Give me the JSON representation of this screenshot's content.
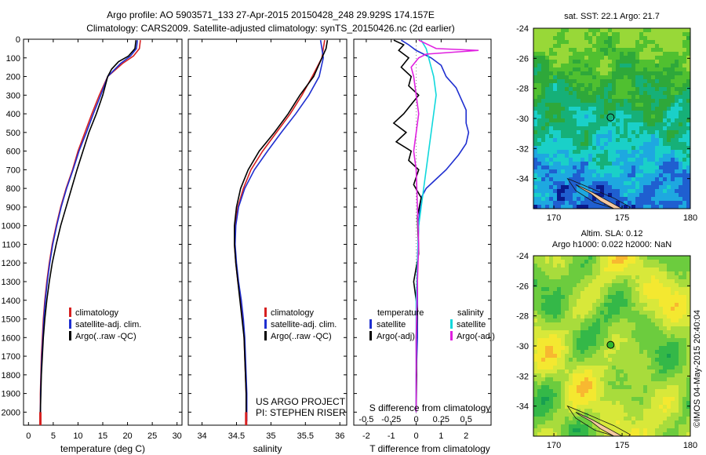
{
  "header": {
    "line1": "Argo profile: AO 5903571_133 27-Apr-2015 20150428_248 29.929S 174.157E",
    "line2": "Climatology: CARS2009. Satellite-adjusted climatology: synTS_20150426.nc (2d earlier)"
  },
  "chart_data": [
    {
      "id": "temperature",
      "type": "line",
      "xlabel": "temperature (deg C)",
      "xlim": [
        -1,
        31
      ],
      "xticks": [
        0,
        5,
        10,
        15,
        20,
        25,
        30
      ],
      "ylim": [
        2070,
        0
      ],
      "yticks": [
        0,
        100,
        200,
        300,
        400,
        500,
        600,
        700,
        800,
        900,
        1000,
        1100,
        1200,
        1300,
        1400,
        1500,
        1600,
        1700,
        1800,
        1900,
        2000
      ],
      "legend": [
        "climatology",
        "satellite-adj. clim.",
        "Argo(..raw -QC)"
      ],
      "series": [
        {
          "name": "climatology",
          "color": "#d62020",
          "x": [
            22.6,
            22.4,
            21.2,
            19.0,
            16.0,
            14.3,
            12.8,
            11.4,
            10.0,
            8.9,
            7.6,
            6.5,
            5.6,
            4.8,
            4.2,
            3.7,
            3.3,
            3.0,
            2.8,
            2.6,
            2.5,
            2.4,
            2.4
          ],
          "y": [
            5,
            50,
            90,
            130,
            200,
            300,
            400,
            500,
            600,
            700,
            800,
            900,
            1000,
            1100,
            1200,
            1300,
            1400,
            1500,
            1600,
            1700,
            1800,
            1900,
            2050
          ]
        },
        {
          "name": "satellite-adj. clim.",
          "color": "#1f2fd0",
          "x": [
            22.0,
            21.8,
            20.6,
            18.6,
            16.0,
            14.6,
            13.1,
            11.7,
            10.2,
            9.0,
            7.7,
            6.6,
            5.7,
            4.9,
            4.3,
            3.8,
            3.4,
            3.1,
            2.9,
            2.7,
            2.55,
            2.45,
            2.4
          ],
          "y": [
            5,
            50,
            90,
            130,
            200,
            300,
            400,
            500,
            600,
            700,
            800,
            900,
            1000,
            1100,
            1200,
            1300,
            1400,
            1500,
            1600,
            1700,
            1800,
            1900,
            2050
          ]
        },
        {
          "name": "Argo(..raw -QC)",
          "color": "#000000",
          "x": [
            21.7,
            21.5,
            20.2,
            18.2,
            16.8,
            16.0,
            15.0,
            13.7,
            12.2,
            11.0,
            9.8,
            8.7,
            7.6,
            6.5,
            5.6,
            4.8,
            4.2,
            3.7,
            3.3,
            3.0,
            2.8,
            2.6,
            2.5,
            2.4,
            2.4
          ],
          "y": [
            5,
            50,
            90,
            120,
            160,
            200,
            300,
            400,
            500,
            600,
            700,
            800,
            900,
            1000,
            1100,
            1200,
            1300,
            1400,
            1500,
            1600,
            1700,
            1800,
            1900,
            2000,
            2050
          ]
        }
      ]
    },
    {
      "id": "salinity",
      "type": "line",
      "xlabel": "salinity",
      "xlim": [
        33.8,
        36.1
      ],
      "xticks": [
        34,
        34.5,
        35,
        35.5,
        36
      ],
      "ylim": [
        2070,
        0
      ],
      "legend": [
        "climatology",
        "satellite-adj. clim.",
        "Argo(..raw -QC)"
      ],
      "annotation": [
        "US ARGO PROJECT",
        "PI: STEPHEN RISER"
      ],
      "series": [
        {
          "name": "climatology",
          "color": "#d62020",
          "x": [
            35.78,
            35.76,
            35.74,
            35.6,
            35.45,
            35.28,
            35.08,
            34.88,
            34.71,
            34.6,
            34.52,
            34.48,
            34.47,
            34.49,
            34.52,
            34.56,
            34.59,
            34.61,
            34.62,
            34.63,
            34.64,
            34.64
          ],
          "y": [
            5,
            50,
            100,
            200,
            300,
            400,
            500,
            600,
            700,
            800,
            900,
            1000,
            1100,
            1200,
            1300,
            1400,
            1500,
            1600,
            1700,
            1800,
            1900,
            2050
          ]
        },
        {
          "name": "satellite-adj. clim.",
          "color": "#1f2fd0",
          "x": [
            35.72,
            35.74,
            35.76,
            35.7,
            35.55,
            35.36,
            35.15,
            34.95,
            34.76,
            34.62,
            34.53,
            34.49,
            34.48,
            34.5,
            34.53,
            34.57,
            34.6,
            34.62,
            34.63,
            34.64,
            34.65,
            34.65
          ],
          "y": [
            5,
            50,
            100,
            200,
            300,
            400,
            500,
            600,
            700,
            800,
            900,
            1000,
            1100,
            1200,
            1300,
            1400,
            1500,
            1600,
            1700,
            1800,
            1900,
            2050
          ]
        },
        {
          "name": "Argo(..raw -QC)",
          "color": "#000000",
          "x": [
            35.82,
            35.8,
            35.74,
            35.62,
            35.42,
            35.25,
            35.05,
            34.83,
            34.67,
            34.56,
            34.5,
            34.47,
            34.47,
            34.49,
            34.52,
            34.55,
            34.58,
            34.61,
            34.62,
            34.63,
            34.64,
            34.64
          ],
          "y": [
            5,
            50,
            100,
            200,
            300,
            400,
            500,
            600,
            700,
            800,
            900,
            1000,
            1100,
            1200,
            1300,
            1400,
            1500,
            1600,
            1700,
            1800,
            1900,
            2000
          ]
        }
      ]
    },
    {
      "id": "difference",
      "type": "line",
      "xlabel": "T difference from climatology",
      "xlabel_top": "S difference from climatology",
      "xlim": [
        -2.5,
        3.0
      ],
      "xticks": [
        -2,
        -1,
        0,
        1,
        2
      ],
      "xticks_top": [
        {
          "v": -0.5,
          "label": "-0.5"
        },
        {
          "v": -0.25,
          "label": "-0.25"
        },
        {
          "v": 0,
          "label": "0"
        },
        {
          "v": 0.25,
          "label": "0.25"
        },
        {
          "v": 0.5,
          "label": "0.5"
        }
      ],
      "ylim": [
        2070,
        0
      ],
      "legend_titles": [
        "temperature",
        "salinity"
      ],
      "legend": [
        "satellite",
        "Argo(-adj)",
        "satellite",
        "Argo(-adj)"
      ],
      "series": [
        {
          "name": "satellite",
          "quantity": "temperature",
          "color": "#1f2fd0",
          "x": [
            -0.6,
            -0.3,
            0.0,
            0.6,
            1.0,
            1.2,
            1.6,
            1.8,
            2.0,
            2.0,
            2.1,
            2.0,
            1.7,
            1.2,
            0.8,
            0.4,
            0.2,
            0.15,
            0.1,
            0.05,
            0.05,
            0.05,
            0.0,
            0.0
          ],
          "y": [
            5,
            30,
            60,
            100,
            140,
            200,
            260,
            320,
            380,
            450,
            500,
            560,
            620,
            700,
            750,
            800,
            850,
            900,
            1000,
            1200,
            1400,
            1600,
            1800,
            2000
          ]
        },
        {
          "name": "Argo(-adj)",
          "quantity": "temperature",
          "color": "#000000",
          "x": [
            -0.9,
            -0.5,
            -0.7,
            -0.3,
            -0.6,
            -0.2,
            -0.3,
            0.1,
            -0.2,
            -0.5,
            -0.9,
            -0.4,
            -0.8,
            -0.2,
            -0.3,
            0.1,
            -0.1,
            0.2,
            0.05,
            0.1,
            -0.1,
            0.05,
            0.0,
            0.02,
            0.0
          ],
          "y": [
            5,
            30,
            60,
            100,
            150,
            200,
            250,
            300,
            350,
            400,
            450,
            500,
            550,
            600,
            650,
            700,
            780,
            850,
            950,
            1150,
            1300,
            1450,
            1600,
            1800,
            2000
          ]
        },
        {
          "name": "satellite",
          "quantity": "salinity",
          "color": "#10d8dc",
          "x": [
            0.2,
            0.4,
            0.5,
            0.6,
            0.7,
            0.8,
            0.7,
            0.6,
            0.5,
            0.4,
            0.3,
            0.2,
            0.1,
            0.05,
            0.0,
            0.0,
            0.0
          ],
          "y": [
            5,
            50,
            100,
            150,
            200,
            300,
            400,
            500,
            600,
            700,
            800,
            900,
            1000,
            1200,
            1400,
            1600,
            2000
          ]
        },
        {
          "name": "Argo(-adj)",
          "quantity": "salinity",
          "color": "#e020e0",
          "x": [
            0.1,
            0.8,
            2.5,
            0.4,
            0.1,
            -0.2,
            -0.1,
            0.0,
            0.1,
            0.0,
            -0.1,
            0.0,
            0.05,
            0.1,
            0.05,
            0.0,
            0.0
          ],
          "y": [
            5,
            50,
            60,
            80,
            100,
            150,
            200,
            300,
            400,
            500,
            600,
            700,
            900,
            1100,
            1300,
            1600,
            2000
          ]
        }
      ]
    }
  ],
  "maps": [
    {
      "id": "sst",
      "title": "sat. SST: 22.1  Argo: 21.7",
      "xticks": [
        170,
        175,
        180
      ],
      "yticks": [
        -24,
        -26,
        -28,
        -30,
        -32,
        -34
      ],
      "lon_range": [
        168.5,
        180
      ],
      "lat_range": [
        -36,
        -24
      ],
      "profile": {
        "lon": 174.157,
        "lat": -29.929
      }
    },
    {
      "id": "sla",
      "title1": "Altim. SLA: 0.12",
      "title2": "Argo h1000: 0.022 h2000: NaN",
      "xticks": [
        170,
        175,
        180
      ],
      "yticks": [
        -24,
        -26,
        -28,
        -30,
        -32,
        -34
      ],
      "lon_range": [
        168.5,
        180
      ],
      "lat_range": [
        -36,
        -24
      ],
      "profile": {
        "lon": 174.157,
        "lat": -29.929
      }
    }
  ],
  "footer": {
    "credit": "©IMOS 04-May-2015 20:40:04"
  }
}
